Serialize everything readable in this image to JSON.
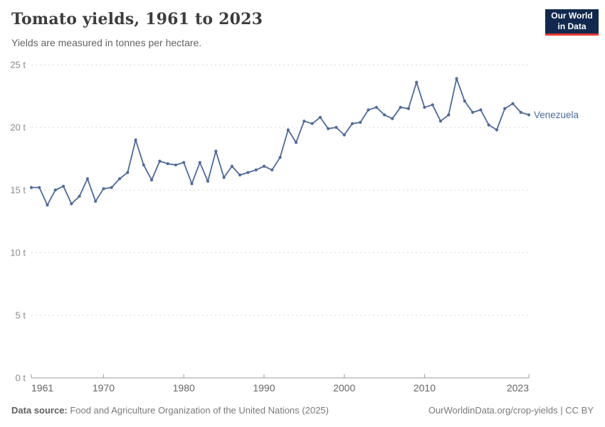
{
  "header": {
    "title": "Tomato yields, 1961 to 2023",
    "subtitle": "Yields are measured in tonnes per hectare.",
    "logo": {
      "line1": "Our World",
      "line2": "in Data"
    }
  },
  "footer": {
    "source_label": "Data source:",
    "source_text": " Food and Agriculture Organization of the United Nations (2025)",
    "credit": "OurWorldinData.org/crop-yields | CC BY"
  },
  "colors": {
    "line": "#4C6A9C",
    "entity_label": "#4C6A9C",
    "grid": "#D7D7D7",
    "axis": "#999999",
    "tick_text": "#8A8A8A",
    "x_tick_text": "#666666",
    "logo_bg": "#12294F",
    "logo_red": "#E5362F"
  },
  "chart_data": {
    "type": "line",
    "title": "Tomato yields, 1961 to 2023",
    "subtitle": "Yields are measured in tonnes per hectare.",
    "unit": "tonnes per hectare",
    "xlabel": "",
    "ylabel": "t",
    "xlim": [
      1961,
      2023
    ],
    "ylim": [
      0,
      25
    ],
    "x_ticks": [
      1961,
      1970,
      1980,
      1990,
      2000,
      2010,
      2023
    ],
    "y_ticks": [
      0,
      5,
      10,
      15,
      20,
      25
    ],
    "y_tick_suffix": " t",
    "grid": "horizontal-dashed",
    "legend_position": "line-end-label",
    "series": [
      {
        "name": "Venezuela",
        "color": "#4C6A9C",
        "x": [
          1961,
          1962,
          1963,
          1964,
          1965,
          1966,
          1967,
          1968,
          1969,
          1970,
          1971,
          1972,
          1973,
          1974,
          1975,
          1976,
          1977,
          1978,
          1979,
          1980,
          1981,
          1982,
          1983,
          1984,
          1985,
          1986,
          1987,
          1988,
          1989,
          1990,
          1991,
          1992,
          1993,
          1994,
          1995,
          1996,
          1997,
          1998,
          1999,
          2000,
          2001,
          2002,
          2003,
          2004,
          2005,
          2006,
          2007,
          2008,
          2009,
          2010,
          2011,
          2012,
          2013,
          2014,
          2015,
          2016,
          2017,
          2018,
          2019,
          2020,
          2021,
          2022,
          2023
        ],
        "values": [
          15.2,
          15.2,
          13.8,
          15.0,
          15.3,
          13.9,
          14.5,
          15.9,
          14.1,
          15.1,
          15.2,
          15.9,
          16.4,
          19.0,
          17.0,
          15.8,
          17.3,
          17.1,
          17.0,
          17.2,
          15.5,
          17.2,
          15.7,
          18.1,
          16.0,
          16.9,
          16.2,
          16.4,
          16.6,
          16.9,
          16.6,
          17.6,
          19.8,
          18.8,
          20.5,
          20.3,
          20.8,
          19.9,
          20.0,
          19.4,
          20.3,
          20.4,
          21.4,
          21.6,
          21.0,
          20.7,
          21.6,
          21.5,
          23.6,
          21.6,
          21.8,
          20.5,
          21.0,
          23.9,
          22.1,
          21.2,
          21.4,
          20.2,
          19.8,
          21.5,
          21.9,
          21.2,
          21.0
        ]
      }
    ]
  }
}
